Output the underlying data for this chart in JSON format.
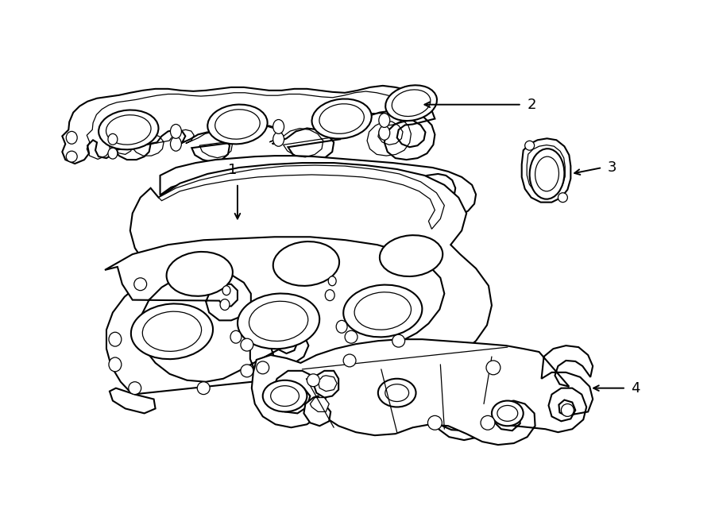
{
  "bg": "#ffffff",
  "lc": "#000000",
  "lw": 1.5,
  "lw_thin": 0.9,
  "parts": {
    "gasket_label": "2",
    "manifold_label": "1",
    "end_gasket_label": "3",
    "shield_label": "4"
  },
  "label_fontsize": 13
}
